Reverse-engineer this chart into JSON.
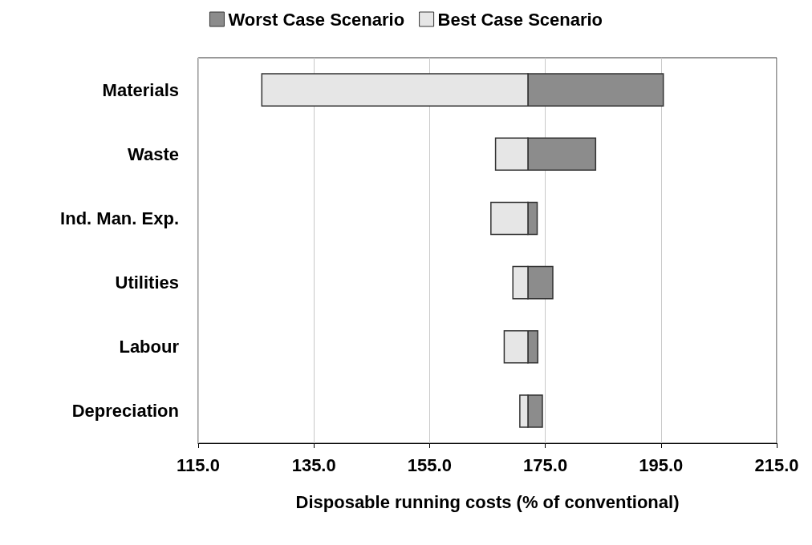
{
  "chart_data": {
    "type": "bar",
    "orientation": "horizontal",
    "xlabel": "Disposable running costs (% of conventional)",
    "categories": [
      "Materials",
      "Waste",
      "Ind. Man. Exp.",
      "Utilities",
      "Labour",
      "Depreciation"
    ],
    "series": [
      {
        "name": "Worst Case Scenario",
        "color": "#8c8c8c",
        "base": [
          172,
          172,
          172,
          172,
          172,
          172
        ],
        "values": [
          23.4,
          11.7,
          1.6,
          4.3,
          1.7,
          2.5
        ]
      },
      {
        "name": "Best Case Scenario",
        "color": "#e6e6e6",
        "base": [
          126,
          166.4,
          165.6,
          169.4,
          167.9,
          170.6
        ],
        "values": [
          46,
          5.6,
          6.4,
          2.6,
          4.1,
          1.4
        ]
      }
    ],
    "xlim": [
      115,
      215
    ],
    "xticks": [
      {
        "value": 115,
        "label": "115.0"
      },
      {
        "value": 135,
        "label": "135.0"
      },
      {
        "value": 155,
        "label": "155.0"
      },
      {
        "value": 175,
        "label": "175.0"
      },
      {
        "value": 195,
        "label": "195.0"
      },
      {
        "value": 215,
        "label": "215.0"
      }
    ],
    "grid": "x",
    "legend": "top"
  }
}
